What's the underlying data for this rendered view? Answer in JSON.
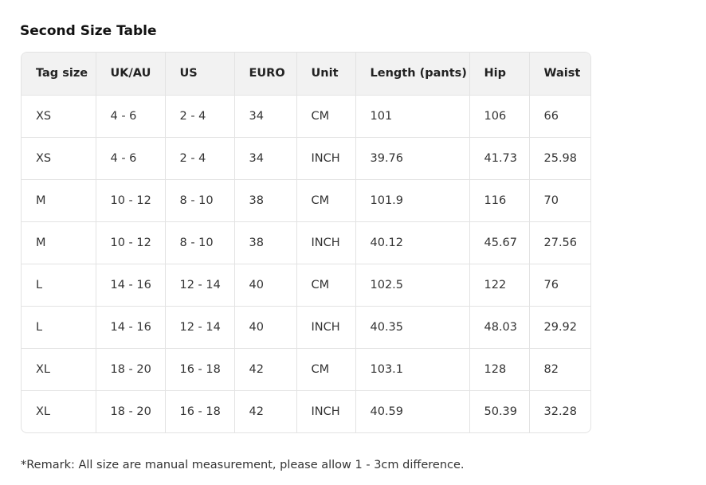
{
  "title": "Second Size Table",
  "headers": [
    "Tag size",
    "UK/AU",
    "US",
    "EURO",
    "Unit",
    "Length (pants)",
    "Hip",
    "Waist"
  ],
  "rows": [
    [
      "XS",
      "4 - 6",
      "2 - 4",
      "34",
      "CM",
      "101",
      "106",
      "66"
    ],
    [
      "XS",
      "4 - 6",
      "2 - 4",
      "34",
      "INCH",
      "39.76",
      "41.73",
      "25.98"
    ],
    [
      "M",
      "10 - 12",
      "8 - 10",
      "38",
      "CM",
      "101.9",
      "116",
      "70"
    ],
    [
      "M",
      "10 - 12",
      "8 - 10",
      "38",
      "INCH",
      "40.12",
      "45.67",
      "27.56"
    ],
    [
      "L",
      "14 - 16",
      "12 - 14",
      "40",
      "CM",
      "102.5",
      "122",
      "76"
    ],
    [
      "L",
      "14 - 16",
      "12 - 14",
      "40",
      "INCH",
      "40.35",
      "48.03",
      "29.92"
    ],
    [
      "XL",
      "18 - 20",
      "16 - 18",
      "42",
      "CM",
      "103.1",
      "128",
      "82"
    ],
    [
      "XL",
      "18 - 20",
      "16 - 18",
      "42",
      "INCH",
      "40.59",
      "50.39",
      "32.28"
    ]
  ],
  "remark": "*Remark: All size are manual measurement, please allow 1 - 3cm difference."
}
